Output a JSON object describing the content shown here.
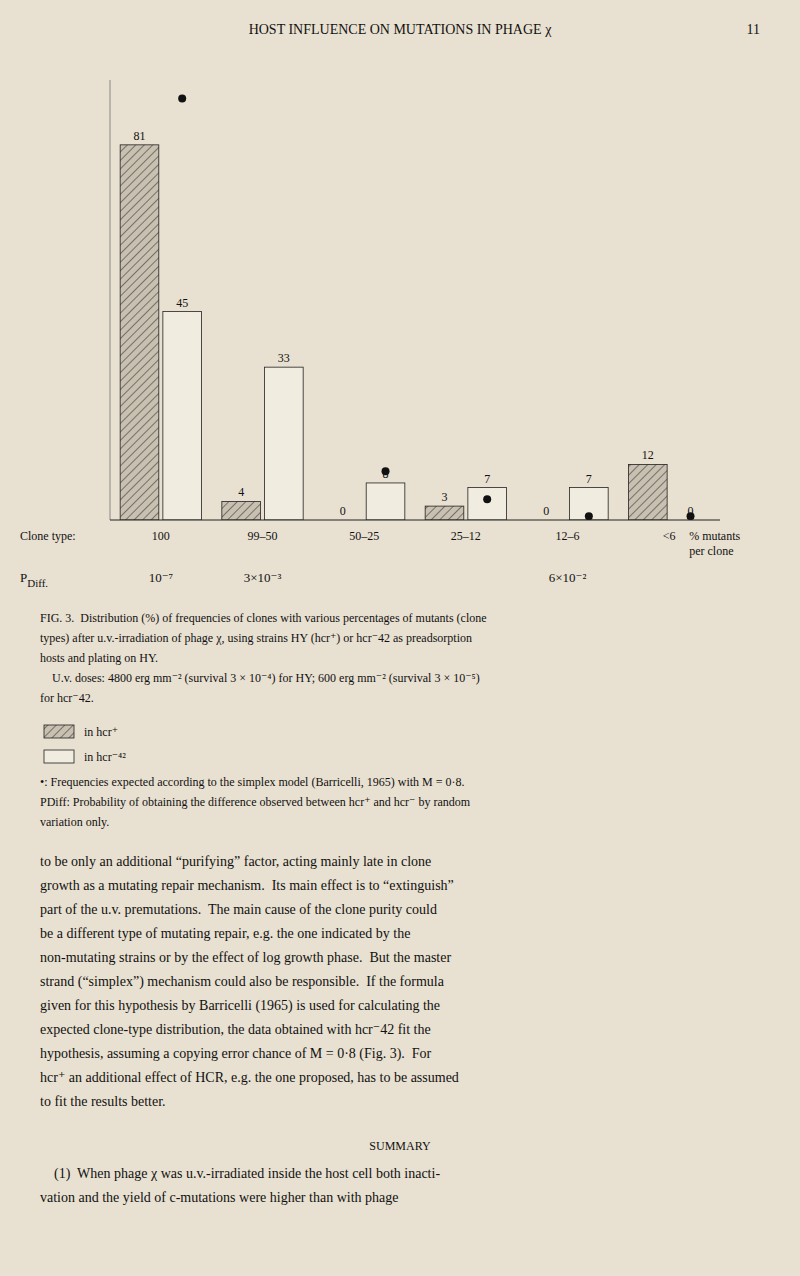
{
  "chart_data": {
    "type": "bar",
    "title": "HOST INFLUENCE ON MUTATIONS IN PHAGE χ",
    "page_number": "11",
    "x_label": "Clone type:",
    "x_unit_label": [
      "% mutants",
      "per clone"
    ],
    "categories": [
      "100",
      "99–50",
      "50–25",
      "25–12",
      "12–6",
      "<6"
    ],
    "series": [
      {
        "name": "in hcr⁺",
        "color": "#c8c0b0",
        "values": [
          81,
          4,
          0,
          3,
          0,
          12
        ],
        "data_labels": true
      },
      {
        "name": "in hcr⁻⁴²",
        "color": "#f0ece0",
        "values": [
          45,
          33,
          8,
          7,
          7,
          0
        ],
        "data_labels": true
      },
      {
        "name": "•: Frequencies expected according to the simplex model (Barricelli, 1965) with M = 0·8.",
        "type": "scatter",
        "marker": "circle",
        "color": "#111111",
        "values": [
          91,
          null,
          10.5,
          4.5,
          0.8,
          0.8
        ]
      }
    ],
    "ylim": [
      0,
      95
    ],
    "tick_labels": "x",
    "grid": false,
    "legend": "bottom left",
    "p_diff": {
      "label": "P",
      "subscript": "Diff.",
      "values": [
        1e-07,
        0.003,
        null,
        null,
        0.06,
        null
      ],
      "value_labels": [
        "10⁻⁷",
        "3×10⁻³",
        null,
        null,
        "6×10⁻²",
        null
      ]
    },
    "caption": [
      "FIG. 3.  Distribution (%) of frequencies of clones with various percentages of mutants (clone",
      "types) after u.v.-irradiation of phage χ, using strains HY (hcr⁺) or hcr⁻42 as preadsorption",
      "hosts and plating on HY.",
      "    U.v. doses: 4800 erg mm⁻² (survival 3 × 10⁻⁴) for HY; 600 erg mm⁻² (survival 3 × 10⁻⁵)",
      "for hcr⁻42."
    ],
    "notes": [
      "PDiff: Probability of obtaining the difference observed between hcr⁺ and hcr⁻ by random",
      "variation only."
    ],
    "body": [
      "to be only an additional “purifying” factor, acting mainly late in clone",
      "growth as a mutating repair mechanism.  Its main effect is to “extinguish”",
      "part of the u.v. premutations.  The main cause of the clone purity could",
      "be a different type of mutating repair, e.g. the one indicated by the",
      "non-mutating strains or by the effect of log growth phase.  But the master",
      "strand (“simplex”) mechanism could also be responsible.  If the formula",
      "given for this hypothesis by Barricelli (1965) is used for calculating the",
      "expected clone-type distribution, the data obtained with hcr⁻42 fit the",
      "hypothesis, assuming a copying error chance of M = 0·8 (Fig. 3).  For",
      "hcr⁺ an additional effect of HCR, e.g. the one proposed, has to be assumed",
      "to fit the results better."
    ],
    "summary_heading": "SUMMARY",
    "summary": [
      "    (1)  When phage χ was u.v.-irradiated inside the host cell both inacti-",
      "vation and the yield of c-mutations were higher than with phage"
    ]
  }
}
